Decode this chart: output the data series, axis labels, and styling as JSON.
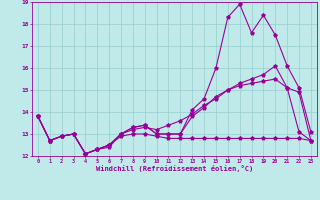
{
  "xlabel": "Windchill (Refroidissement éolien,°C)",
  "background_color": "#c0eaea",
  "grid_color": "#98cccc",
  "line_color": "#990099",
  "x_values": [
    0,
    1,
    2,
    3,
    4,
    5,
    6,
    7,
    8,
    9,
    10,
    11,
    12,
    13,
    14,
    15,
    16,
    17,
    18,
    19,
    20,
    21,
    22,
    23
  ],
  "series1": [
    13.8,
    12.7,
    12.9,
    13.0,
    12.1,
    12.3,
    12.4,
    13.0,
    13.3,
    13.4,
    13.0,
    13.0,
    13.0,
    14.1,
    14.6,
    16.0,
    18.3,
    18.9,
    17.6,
    18.4,
    17.5,
    16.1,
    15.1,
    13.1
  ],
  "series2": [
    13.8,
    12.7,
    12.9,
    13.0,
    12.1,
    12.3,
    12.5,
    13.0,
    13.3,
    13.4,
    13.0,
    13.0,
    13.0,
    13.8,
    14.2,
    14.7,
    15.0,
    15.2,
    15.3,
    15.4,
    15.5,
    15.1,
    14.9,
    12.7
  ],
  "series3": [
    13.8,
    12.7,
    12.9,
    13.0,
    12.1,
    12.3,
    12.5,
    12.9,
    13.0,
    13.0,
    12.9,
    12.8,
    12.8,
    12.8,
    12.8,
    12.8,
    12.8,
    12.8,
    12.8,
    12.8,
    12.8,
    12.8,
    12.8,
    12.7
  ],
  "series4": [
    13.8,
    12.7,
    12.9,
    13.0,
    12.1,
    12.3,
    12.5,
    13.0,
    13.2,
    13.3,
    13.2,
    13.4,
    13.6,
    13.9,
    14.3,
    14.6,
    15.0,
    15.3,
    15.5,
    15.7,
    16.1,
    15.1,
    13.1,
    12.7
  ],
  "ylim": [
    12,
    19
  ],
  "xlim": [
    -0.5,
    23.5
  ],
  "yticks": [
    12,
    13,
    14,
    15,
    16,
    17,
    18,
    19
  ],
  "xticks": [
    0,
    1,
    2,
    3,
    4,
    5,
    6,
    7,
    8,
    9,
    10,
    11,
    12,
    13,
    14,
    15,
    16,
    17,
    18,
    19,
    20,
    21,
    22,
    23
  ]
}
